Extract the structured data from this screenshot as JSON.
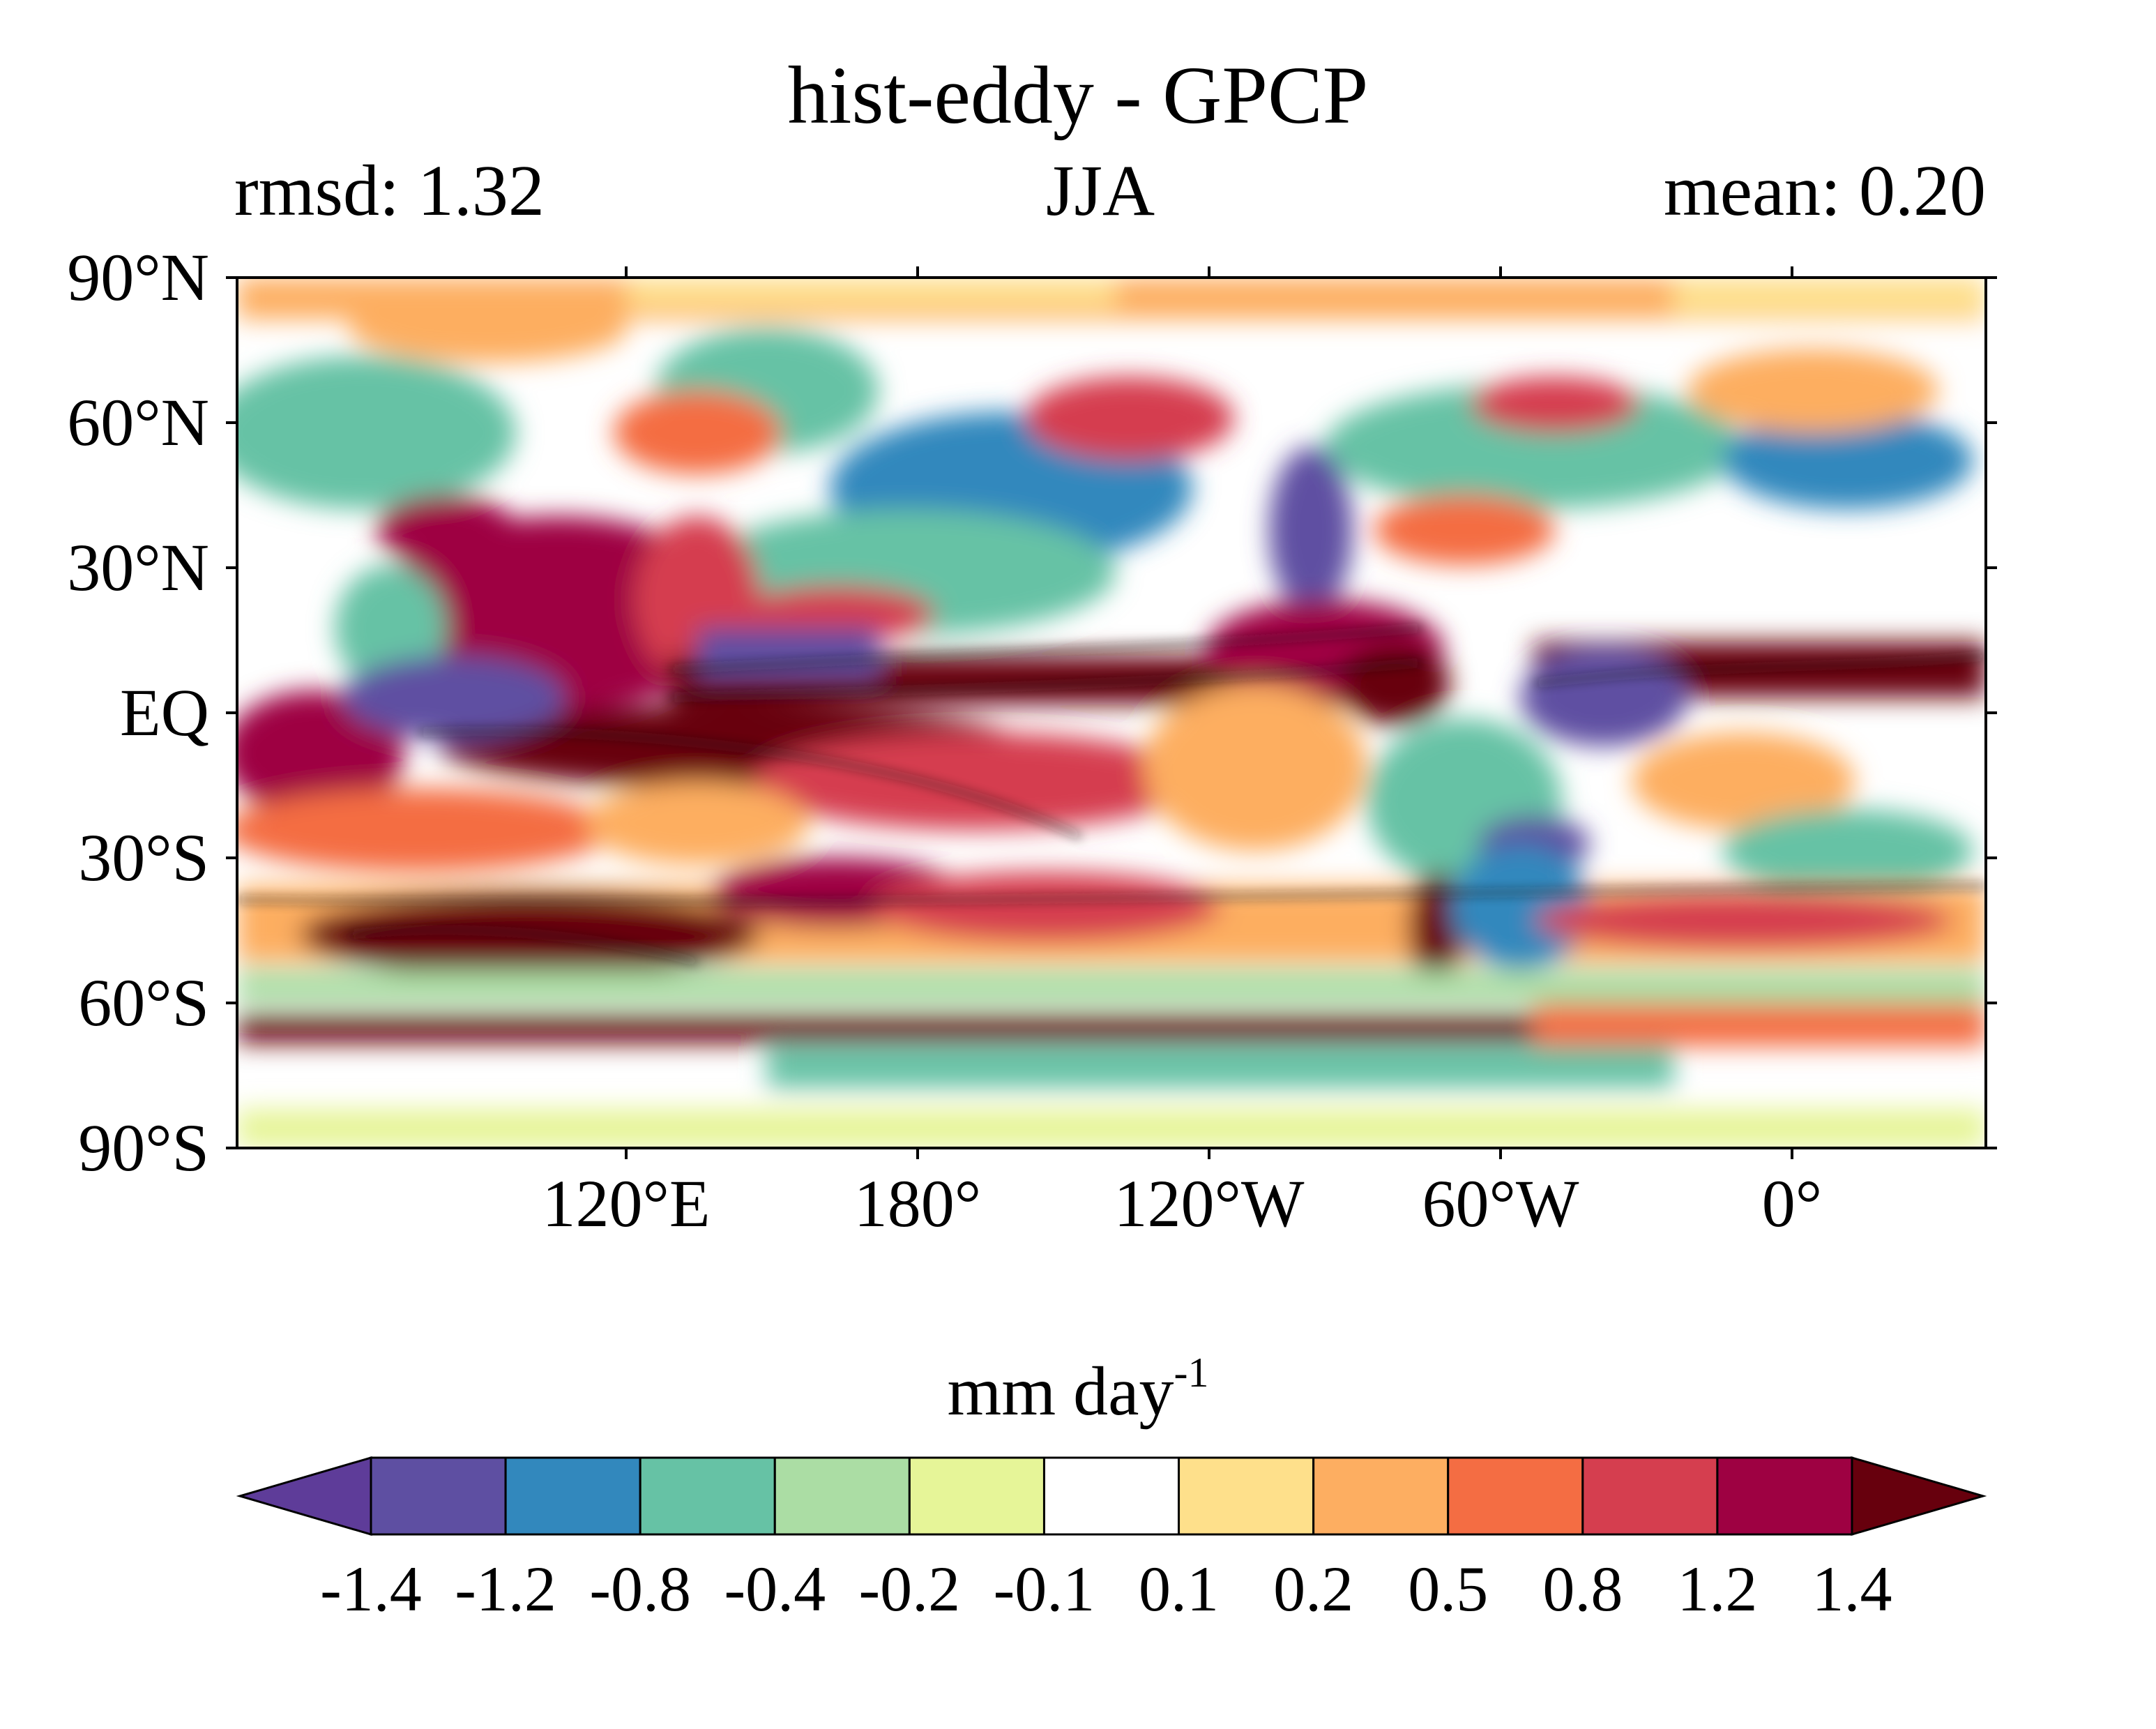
{
  "title": "hist-eddy - GPCP",
  "left_subtitle": "rmsd: 1.32",
  "center_subtitle": "JJA",
  "right_subtitle": "mean: 0.20",
  "lat_labels": [
    "90°N",
    "60°N",
    "30°N",
    "EQ",
    "30°S",
    "60°S",
    "90°S"
  ],
  "lon_labels": [
    "120°E",
    "180°",
    "120°W",
    "60°W",
    "0°"
  ],
  "colorbar": {
    "units_base": "mm day",
    "units_exp": "-1",
    "levels": [
      "-1.4",
      "-1.2",
      "-0.8",
      "-0.4",
      "-0.2",
      "-0.1",
      "0.1",
      "0.2",
      "0.5",
      "0.8",
      "1.2",
      "1.4"
    ],
    "colors": [
      "#5e3c99",
      "#5e4fa2",
      "#3288bd",
      "#66c2a5",
      "#abdda4",
      "#e6f598",
      "#ffffff",
      "#fee08b",
      "#fdae61",
      "#f46d43",
      "#d53e4f",
      "#9e0142",
      "#67000d"
    ],
    "extend": "both"
  }
}
